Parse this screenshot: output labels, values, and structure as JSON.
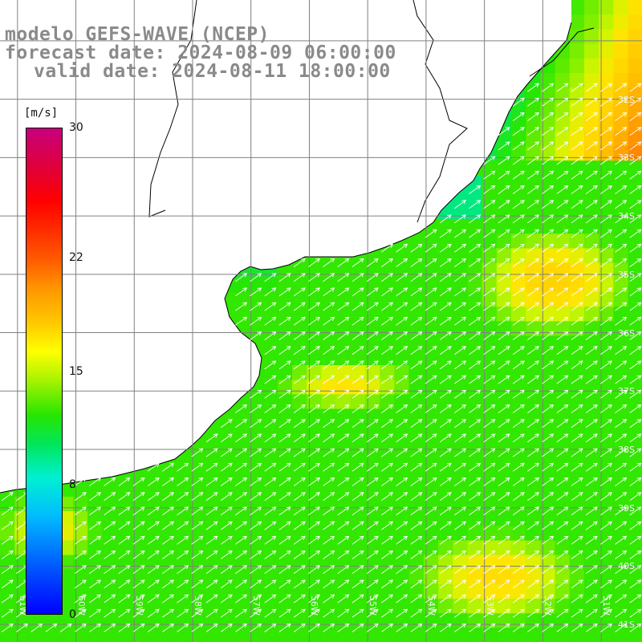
{
  "title": {
    "line1": "modelo GEFS-WAVE (NCEP)",
    "line2": "forecast date: 2024-08-09 06:00:00",
    "line3": "valid date: 2024-08-11 18:00:00"
  },
  "colorbar": {
    "unit": "[m/s]",
    "min": 0,
    "max": 30,
    "ticks": [
      {
        "value": 30,
        "label": "30"
      },
      {
        "value": 22,
        "label": "22"
      },
      {
        "value": 15,
        "label": "15"
      },
      {
        "value": 8,
        "label": "8"
      },
      {
        "value": 0,
        "label": "0"
      }
    ]
  },
  "map": {
    "lat_labels": [
      "32S",
      "33S",
      "34S",
      "35S",
      "36S",
      "37S",
      "38S",
      "39S",
      "40S",
      "41S"
    ],
    "lon_labels": [
      "61W",
      "60W",
      "59W",
      "58W",
      "57W",
      "56W",
      "55W",
      "54W",
      "53W",
      "52W",
      "51W"
    ],
    "lon_range": [
      -61.3,
      -50.3
    ],
    "lat_range": [
      -41.3,
      -30.3
    ],
    "wind_direction": "from southwest (arrows pointing northeast)",
    "colors": {
      "land": "#ffffff",
      "coast": "#000000",
      "grid": "#808080",
      "arrow": "#ffffff"
    }
  }
}
